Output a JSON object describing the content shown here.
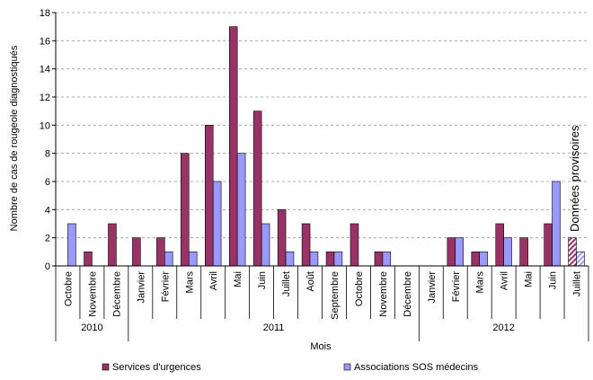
{
  "chart_data": {
    "type": "bar",
    "ylabel": "Nombre de cas de rougeole diagnostiqués",
    "xlabel": "Mois",
    "ylim": [
      0,
      18
    ],
    "yticks": [
      0,
      2,
      4,
      6,
      8,
      10,
      12,
      14,
      16,
      18
    ],
    "grid": true,
    "legend_position": "bottom",
    "categories": [
      "Octobre",
      "Novembre",
      "Décembre",
      "Janvier",
      "Février",
      "Mars",
      "Avril",
      "Mai",
      "Juin",
      "Juillet",
      "Août",
      "Septembre",
      "Octobre",
      "Novembre",
      "Décembre",
      "Janvier",
      "Février",
      "Mars",
      "Avril",
      "Mai",
      "Juin",
      "Juillet"
    ],
    "year_groups": [
      {
        "label": "2010",
        "count": 3
      },
      {
        "label": "2011",
        "count": 12
      },
      {
        "label": "2012",
        "count": 7
      }
    ],
    "series": [
      {
        "name": "Services d'urgences",
        "color": "#993366",
        "values": [
          0,
          1,
          3,
          2,
          2,
          8,
          10,
          17,
          11,
          4,
          3,
          1,
          3,
          1,
          0,
          0,
          2,
          1,
          3,
          2,
          3,
          2
        ]
      },
      {
        "name": "Associations SOS médecins",
        "color": "#9999ff",
        "values": [
          3,
          0,
          0,
          0,
          1,
          1,
          6,
          8,
          3,
          1,
          1,
          1,
          0,
          1,
          0,
          0,
          2,
          1,
          2,
          0,
          6,
          1
        ]
      }
    ],
    "provisional_note": "Données provisoires",
    "provisional_categories": [
      20,
      21
    ]
  }
}
